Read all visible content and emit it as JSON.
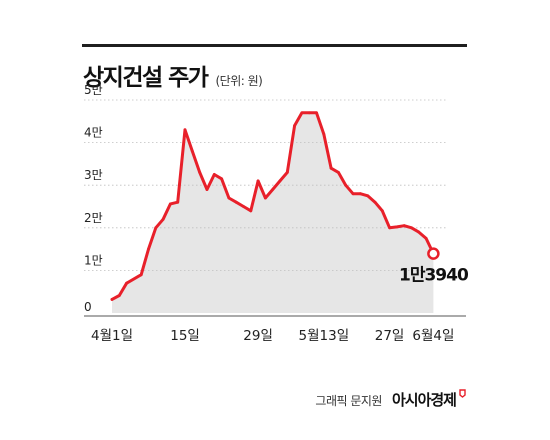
{
  "header": {
    "title": "상지건설 주가",
    "unit": "(단위: 원)"
  },
  "footer": {
    "credit": "그래픽 문지원",
    "brand": "아시아경제"
  },
  "colors": {
    "line": "#e8202a",
    "area": "#e6e6e6",
    "grid": "#bfbfbf",
    "axis_text": "#222222"
  },
  "chart_data": {
    "type": "area",
    "title": "상지건설 주가",
    "unit_label": "(단위: 원)",
    "ylim": [
      0,
      50000
    ],
    "ytick_values": [
      0,
      10000,
      20000,
      30000,
      40000,
      50000
    ],
    "ytick_labels": [
      "0",
      "1만",
      "2만",
      "3만",
      "4만",
      "5만"
    ],
    "xlim": [
      0,
      46
    ],
    "xtick_values": [
      0,
      10,
      20,
      29,
      38,
      44
    ],
    "xtick_labels": [
      "4월1일",
      "15일",
      "29일",
      "5월13일",
      "27일",
      "6월4일"
    ],
    "grid": true,
    "series": [
      {
        "x": [
          0,
          1,
          2,
          4,
          5,
          6,
          7,
          8,
          9,
          10,
          11,
          12,
          13,
          14,
          15,
          16,
          17,
          18,
          19,
          20,
          21,
          22,
          23,
          24,
          25,
          26,
          27,
          28,
          29,
          30,
          31,
          32,
          33,
          34,
          35,
          36,
          37,
          38,
          39,
          40,
          41,
          42,
          43,
          44
        ],
        "y": [
          3200,
          4100,
          7000,
          9000,
          15000,
          20000,
          22000,
          25600,
          26000,
          43000,
          38000,
          33000,
          29000,
          32500,
          31500,
          27000,
          26000,
          25000,
          24000,
          31000,
          27000,
          29000,
          31000,
          33000,
          44000,
          47000,
          47000,
          47000,
          42000,
          34000,
          33000,
          30000,
          28000,
          28000,
          27500,
          26000,
          24000,
          20000,
          20200,
          20500,
          20000,
          19000,
          17500,
          13940
        ]
      }
    ],
    "annotations": [
      {
        "x": 44,
        "y": 13940,
        "text": "1만3940"
      }
    ]
  }
}
